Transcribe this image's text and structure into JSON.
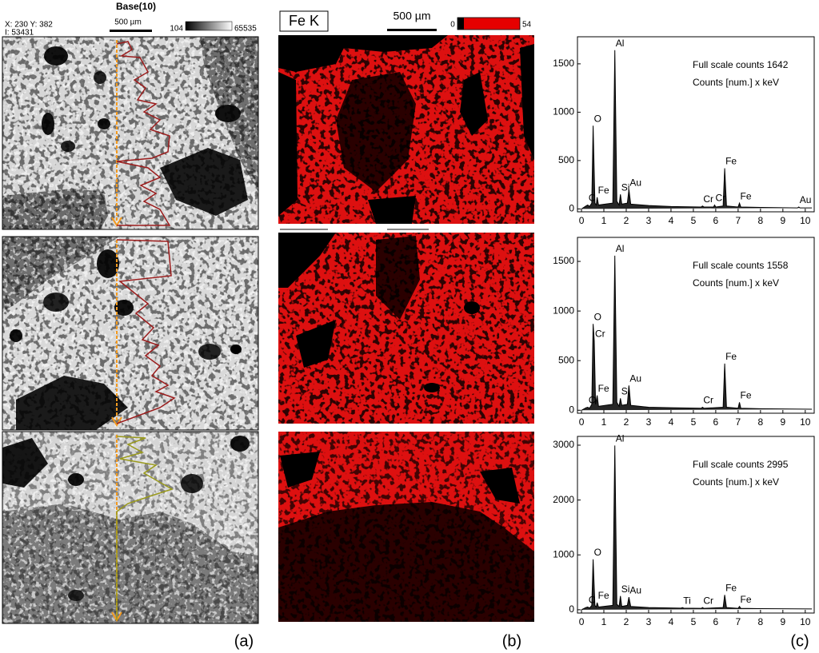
{
  "panel_a": {
    "coords": "X: 230 Y: 382",
    "intensity": "I: 53431",
    "title": "Base(10)",
    "scale_bar": "500 µm",
    "colorbar_min": "104",
    "colorbar_max": "65535"
  },
  "panel_b": {
    "element": "Fe K",
    "scale_bar": "500 µm",
    "colorbar_min": "0",
    "colorbar_max": "54"
  },
  "panel_labels": [
    "(a)",
    "(b)",
    "(c)"
  ],
  "chart_data": [
    {
      "type": "line",
      "title": "Full scale counts 1642",
      "subtitle": "Counts [num.] x keV",
      "x": [
        0,
        0.2,
        0.28,
        0.36,
        0.46,
        0.52,
        0.6,
        0.66,
        0.7,
        0.76,
        1.4,
        1.49,
        1.58,
        1.68,
        1.74,
        1.8,
        2.05,
        2.12,
        2.2,
        3,
        4,
        5.35,
        5.41,
        5.47,
        5.9,
        5.95,
        6.0,
        6.33,
        6.4,
        6.48,
        7.0,
        7.06,
        7.12,
        8,
        9.65,
        9.71,
        9.77,
        10.3
      ],
      "series": [
        {
          "color": "#000000",
          "values": [
            0,
            30,
            40,
            25,
            60,
            860,
            60,
            40,
            120,
            40,
            60,
            1642,
            80,
            40,
            150,
            50,
            60,
            200,
            50,
            35,
            25,
            20,
            30,
            20,
            20,
            40,
            20,
            30,
            420,
            30,
            20,
            60,
            20,
            15,
            10,
            20,
            10,
            10
          ],
          "point_labels": [
            null,
            null,
            "C",
            null,
            null,
            "O",
            null,
            null,
            "Fe",
            null,
            null,
            "Al",
            null,
            null,
            "Si",
            null,
            null,
            "Au",
            null,
            null,
            null,
            null,
            "Cr",
            null,
            null,
            "Cr",
            null,
            null,
            "Fe",
            null,
            null,
            "Fe",
            null,
            null,
            null,
            "Au",
            null,
            null
          ]
        }
      ],
      "xlim": [
        -0.18,
        10.4
      ],
      "xticks": [
        0,
        1,
        2,
        3,
        4,
        5,
        6,
        7,
        8,
        9,
        10
      ],
      "ylim": [
        -30,
        1780
      ],
      "yticks": [
        0,
        500,
        1000,
        1500
      ]
    },
    {
      "type": "line",
      "title": "Full scale counts 1558",
      "subtitle": "Counts [num.] x keV",
      "x": [
        0,
        0.2,
        0.28,
        0.36,
        0.46,
        0.52,
        0.57,
        0.63,
        0.7,
        0.76,
        1.4,
        1.49,
        1.58,
        1.68,
        1.74,
        1.8,
        2.05,
        2.12,
        2.2,
        3,
        4,
        5.35,
        5.41,
        5.47,
        6.33,
        6.4,
        6.48,
        7.0,
        7.06,
        7.12,
        8,
        10.3
      ],
      "series": [
        {
          "color": "#000000",
          "values": [
            0,
            25,
            30,
            20,
            60,
            870,
            700,
            60,
            150,
            40,
            60,
            1558,
            80,
            40,
            120,
            50,
            60,
            250,
            50,
            30,
            25,
            20,
            30,
            20,
            30,
            470,
            30,
            20,
            80,
            20,
            15,
            10
          ],
          "point_labels": [
            null,
            null,
            "C",
            null,
            null,
            "O",
            "Cr",
            null,
            "Fe",
            null,
            null,
            "Al",
            null,
            null,
            "Si",
            null,
            null,
            "Au",
            null,
            null,
            null,
            null,
            "Cr",
            null,
            null,
            "Fe",
            null,
            null,
            "Fe",
            null,
            null,
            null
          ]
        }
      ],
      "xlim": [
        -0.18,
        10.4
      ],
      "xticks": [
        0,
        1,
        2,
        3,
        4,
        5,
        6,
        7,
        8,
        9,
        10
      ],
      "ylim": [
        -30,
        1742
      ],
      "yticks": [
        0,
        500,
        1000,
        1500
      ]
    },
    {
      "type": "line",
      "title": "Full scale counts 2995",
      "subtitle": "Counts [num.] x keV",
      "x": [
        0,
        0.2,
        0.28,
        0.36,
        0.46,
        0.52,
        0.6,
        0.66,
        0.7,
        0.76,
        1.4,
        1.49,
        1.58,
        1.68,
        1.74,
        1.8,
        2.05,
        2.12,
        2.2,
        3,
        4.45,
        4.51,
        4.57,
        5.35,
        5.41,
        5.47,
        6.33,
        6.4,
        6.48,
        7.0,
        7.06,
        7.12,
        8,
        10.3
      ],
      "series": [
        {
          "color": "#000000",
          "values": [
            0,
            40,
            50,
            30,
            80,
            920,
            80,
            50,
            130,
            50,
            80,
            2995,
            100,
            60,
            250,
            60,
            80,
            230,
            60,
            40,
            30,
            40,
            30,
            25,
            40,
            25,
            40,
            270,
            40,
            25,
            60,
            25,
            20,
            15
          ],
          "point_labels": [
            null,
            null,
            "C",
            null,
            null,
            "O",
            null,
            null,
            "Fe",
            null,
            null,
            "Al",
            null,
            null,
            "Si",
            null,
            null,
            "Au",
            null,
            null,
            null,
            "Ti",
            null,
            null,
            "Cr",
            null,
            null,
            "Fe",
            null,
            null,
            "Fe",
            null,
            null,
            null
          ]
        }
      ],
      "xlim": [
        -0.18,
        10.4
      ],
      "xticks": [
        0,
        1,
        2,
        3,
        4,
        5,
        6,
        7,
        8,
        9,
        10
      ],
      "ylim": [
        -60,
        3160
      ],
      "yticks": [
        0,
        1000,
        2000,
        3000
      ]
    }
  ]
}
